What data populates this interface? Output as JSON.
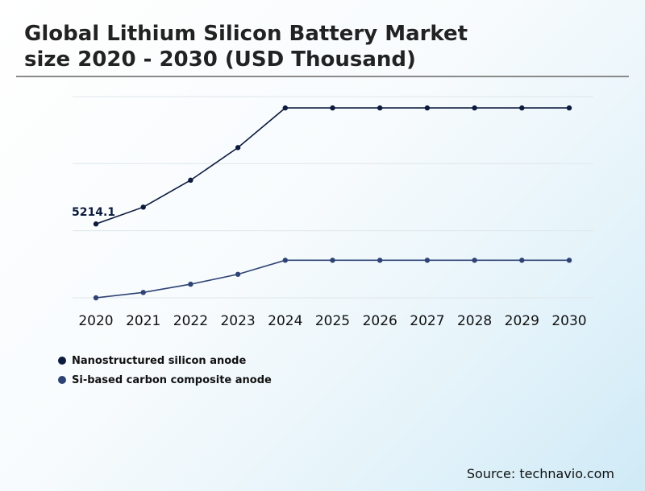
{
  "header": {
    "title_line1": "Global Lithium Silicon Battery Market",
    "title_line2": "size 2020 - 2030 (USD Thousand)"
  },
  "chart_data": {
    "type": "line",
    "title": "Global Lithium Silicon Battery Market size 2020 - 2030 (USD Thousand)",
    "categories": [
      "2020",
      "2021",
      "2022",
      "2023",
      "2024",
      "2025",
      "2026",
      "2027",
      "2028",
      "2029",
      "2030"
    ],
    "series": [
      {
        "name": "Nanostructured silicon anode",
        "color": "#0d1b3e",
        "values": [
          5214.1,
          6400,
          8300,
          10600,
          13400,
          13400,
          13400,
          13400,
          13400,
          13400,
          13400
        ]
      },
      {
        "name": "Si-based carbon composite anode",
        "color": "#2e4375",
        "values": [
          0,
          380,
          960,
          1660,
          2650,
          2650,
          2650,
          2650,
          2650,
          2650,
          2650
        ]
      }
    ],
    "annotations": [
      {
        "series": 0,
        "index": 0,
        "text": "5214.1"
      }
    ],
    "ylim": [
      0,
      14200
    ],
    "gridlines": [
      0,
      4735,
      9470,
      14200
    ],
    "xlabel": "",
    "ylabel": "",
    "legend_position": "bottom-left"
  },
  "legend": {
    "items": [
      {
        "label": "Nanostructured silicon anode",
        "color": "#0d1b3e"
      },
      {
        "label": "Si-based carbon composite anode",
        "color": "#2e4375"
      }
    ]
  },
  "footer": {
    "source": "Source: technavio.com"
  }
}
